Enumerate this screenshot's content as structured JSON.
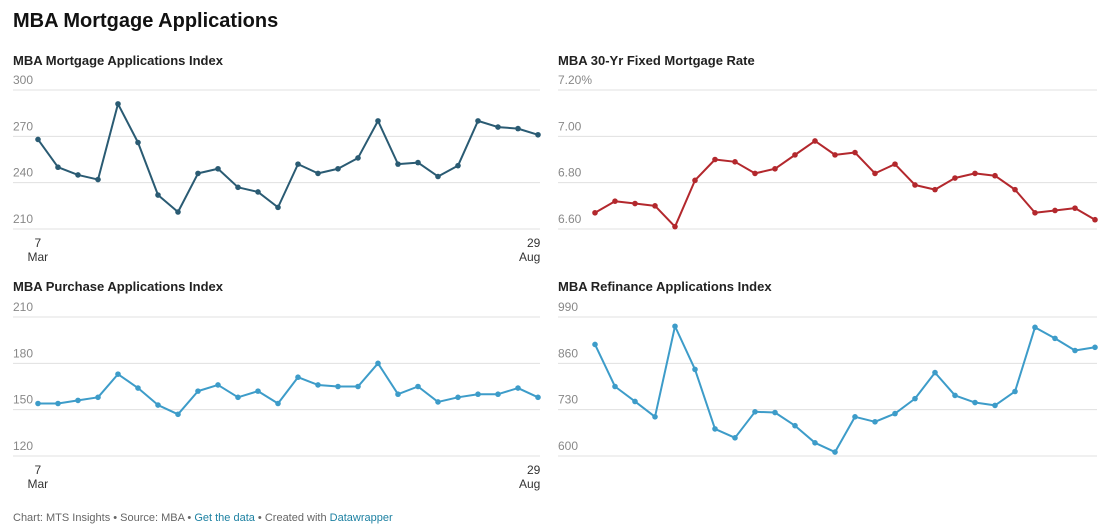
{
  "title": "MBA Mortgage Applications",
  "chart_data": [
    {
      "type": "line",
      "title": "MBA Mortgage Applications Index",
      "categories": [
        "7 Mar",
        null,
        null,
        null,
        null,
        null,
        null,
        null,
        null,
        null,
        null,
        null,
        null,
        null,
        null,
        null,
        null,
        null,
        null,
        null,
        null,
        null,
        null,
        null,
        null,
        "29 Aug"
      ],
      "series": [
        {
          "color": "#2a5b73",
          "values": [
            268,
            250,
            245,
            242,
            291,
            266,
            232,
            221,
            246,
            249,
            237,
            234,
            224,
            252,
            246,
            249,
            256,
            280,
            252,
            253,
            244,
            251,
            280,
            276,
            275,
            271
          ]
        }
      ],
      "ylim": [
        210,
        300
      ],
      "yticks": [
        210,
        240,
        270,
        300
      ],
      "grid": true
    },
    {
      "type": "line",
      "title": "MBA 30-Yr Fixed Mortgage Rate",
      "series": [
        {
          "color": "#b3282d",
          "values": [
            6.67,
            6.72,
            6.71,
            6.7,
            6.61,
            6.81,
            6.9,
            6.89,
            6.84,
            6.86,
            6.92,
            6.98,
            6.92,
            6.93,
            6.84,
            6.88,
            6.79,
            6.77,
            6.82,
            6.84,
            6.83,
            6.77,
            6.67,
            6.68,
            6.69,
            6.64
          ]
        }
      ],
      "ylim": [
        6.6,
        7.2
      ],
      "yticks": [
        {
          "value": 6.6,
          "label": "6.60"
        },
        {
          "value": 6.8,
          "label": "6.80"
        },
        {
          "value": 7.0,
          "label": "7.00"
        },
        {
          "value": 7.2,
          "label": "7.20%"
        }
      ],
      "grid": true
    },
    {
      "type": "line",
      "title": "MBA Purchase Applications Index",
      "categories": [
        "7 Mar",
        null,
        null,
        null,
        null,
        null,
        null,
        null,
        null,
        null,
        null,
        null,
        null,
        null,
        null,
        null,
        null,
        null,
        null,
        null,
        null,
        null,
        null,
        null,
        null,
        "29 Aug"
      ],
      "series": [
        {
          "color": "#3d9cc9",
          "values": [
            154,
            154,
            156,
            158,
            173,
            164,
            153,
            147,
            162,
            166,
            158,
            162,
            154,
            171,
            166,
            165,
            165,
            180,
            160,
            165,
            155,
            158,
            160,
            160,
            164,
            158
          ]
        }
      ],
      "ylim": [
        120,
        210
      ],
      "yticks": [
        120,
        150,
        180,
        210
      ],
      "grid": true
    },
    {
      "type": "line",
      "title": "MBA Refinance Applications Index",
      "series": [
        {
          "color": "#3d9cc9",
          "values": [
            913,
            795,
            753,
            710,
            964,
            843,
            676,
            651,
            724,
            722,
            685,
            637,
            611,
            710,
            696,
            719,
            761,
            834,
            770,
            750,
            742,
            781,
            961,
            930,
            896,
            905
          ]
        }
      ],
      "ylim": [
        600,
        990
      ],
      "yticks": [
        600,
        730,
        860,
        990
      ],
      "grid": true
    }
  ],
  "footer": {
    "credit": "Chart: MTS Insights • Source: MBA • ",
    "data_link": "Get the data",
    "created": " • Created with ",
    "tool_link": "Datawrapper"
  }
}
